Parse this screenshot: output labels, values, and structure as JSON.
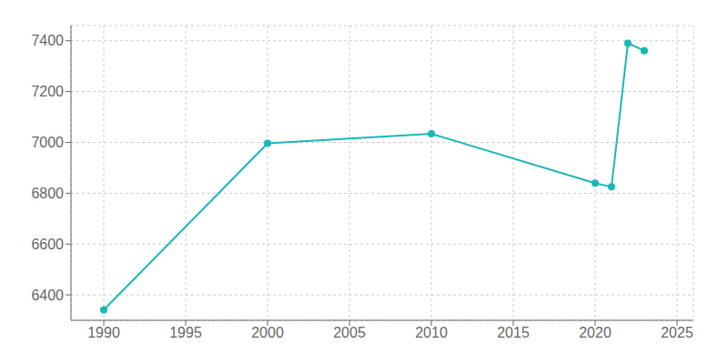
{
  "chart_data": {
    "type": "line",
    "x": [
      1990,
      2000,
      2010,
      2020,
      2021,
      2022,
      2023
    ],
    "values": [
      6341,
      6996,
      7034,
      6840,
      6825,
      7390,
      7361
    ],
    "color": "#1ab8b8",
    "marker": "circle",
    "xlim": [
      1988,
      2026
    ],
    "ylim": [
      6300,
      7460
    ],
    "xticks": [
      1990,
      1995,
      2000,
      2005,
      2010,
      2015,
      2020,
      2025
    ],
    "yticks": [
      6400,
      6600,
      6800,
      7000,
      7200,
      7400
    ],
    "grid": true
  }
}
